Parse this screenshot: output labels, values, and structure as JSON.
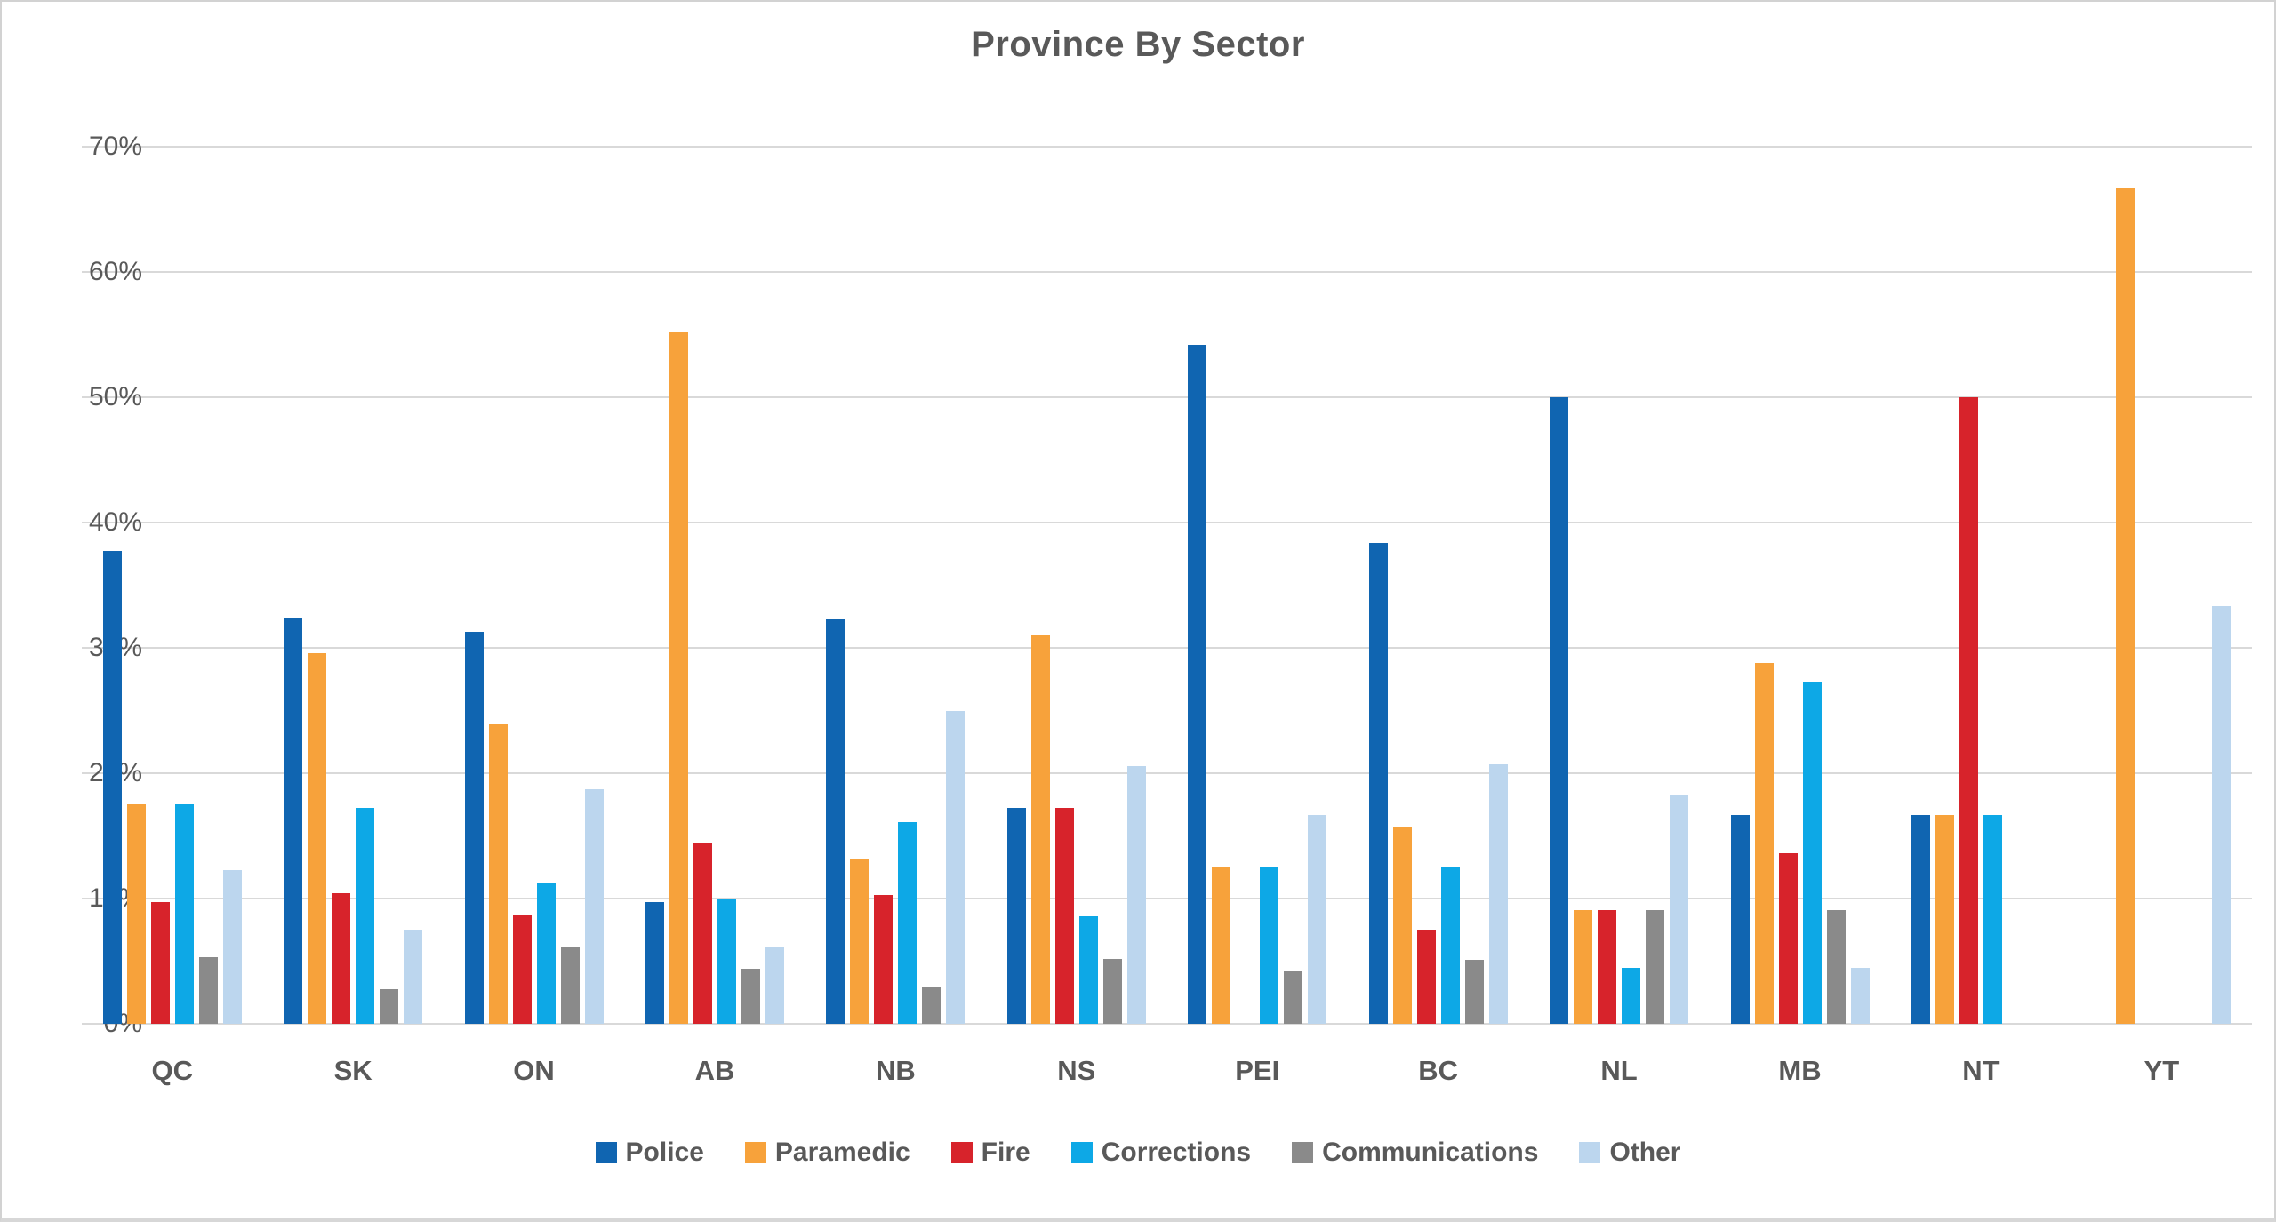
{
  "title": "Province By Sector",
  "colors": {
    "police": "#1065B1",
    "paramedic": "#F7A23B",
    "fire": "#D7232B",
    "corrections": "#0DA8E6",
    "communications": "#8A8A8A",
    "other": "#BCD6EE",
    "gridline": "#D9D9D9",
    "text": "#595959"
  },
  "chart_data": {
    "type": "bar",
    "title": "Province By Sector",
    "xlabel": "",
    "ylabel": "",
    "ylim": [
      0,
      70
    ],
    "grid": true,
    "legend_position": "bottom",
    "y_ticks": [
      "0%",
      "10%",
      "20%",
      "30%",
      "40%",
      "50%",
      "60%",
      "70%"
    ],
    "categories": [
      "QC",
      "SK",
      "ON",
      "AB",
      "NB",
      "NS",
      "PEI",
      "BC",
      "NL",
      "MB",
      "NT",
      "YT"
    ],
    "series": [
      {
        "name": "Police",
        "color": "#1065B1",
        "values": [
          37.7,
          32.4,
          31.3,
          9.7,
          32.3,
          17.2,
          54.2,
          38.4,
          50.0,
          16.7,
          16.7,
          0
        ]
      },
      {
        "name": "Paramedic",
        "color": "#F7A23B",
        "values": [
          17.5,
          29.6,
          23.9,
          55.2,
          13.2,
          31.0,
          12.5,
          15.7,
          9.1,
          28.8,
          16.7,
          66.7
        ]
      },
      {
        "name": "Fire",
        "color": "#D7232B",
        "values": [
          9.7,
          10.4,
          8.7,
          14.5,
          10.3,
          17.2,
          0,
          7.5,
          9.1,
          13.6,
          50.0,
          0
        ]
      },
      {
        "name": "Corrections",
        "color": "#0DA8E6",
        "values": [
          17.5,
          17.2,
          11.3,
          10.0,
          16.1,
          8.6,
          12.5,
          12.5,
          4.5,
          27.3,
          16.7,
          0
        ]
      },
      {
        "name": "Communications",
        "color": "#8A8A8A",
        "values": [
          5.3,
          2.8,
          6.1,
          4.4,
          2.9,
          5.2,
          4.2,
          5.1,
          9.1,
          9.1,
          0,
          0
        ]
      },
      {
        "name": "Other",
        "color": "#BCD6EE",
        "values": [
          12.3,
          7.5,
          18.7,
          6.1,
          25.0,
          20.6,
          16.7,
          20.7,
          18.2,
          4.5,
          0,
          33.3
        ]
      }
    ]
  }
}
